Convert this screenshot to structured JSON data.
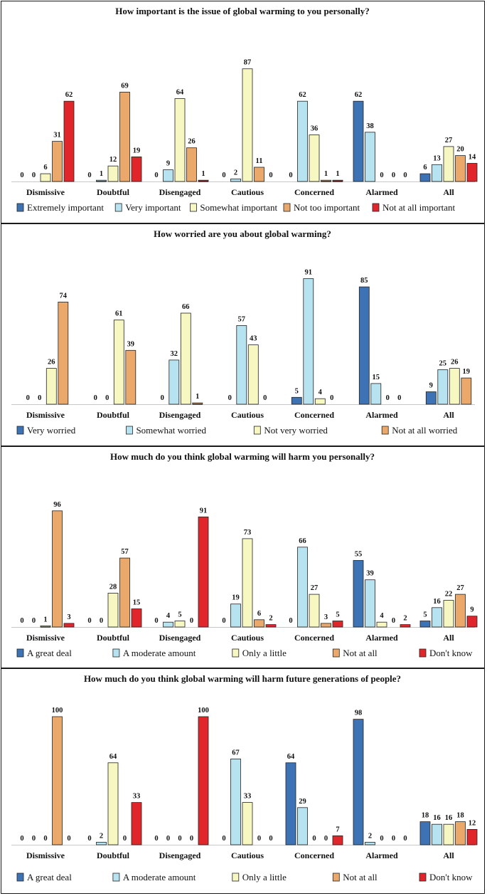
{
  "chart_data": [
    {
      "type": "bar",
      "title": "How important is the issue of global warming to you personally?",
      "categories": [
        "Dismissive",
        "Doubtful",
        "Disengaged",
        "Cautious",
        "Concerned",
        "Alarmed",
        "All"
      ],
      "ylim": [
        0,
        100
      ],
      "series": [
        {
          "name": "Extremely important",
          "color": "#3d72b4",
          "values": [
            0,
            0,
            0,
            0,
            0,
            62,
            6
          ]
        },
        {
          "name": "Very important",
          "color": "#b7e3f0",
          "values": [
            0,
            1,
            9,
            2,
            62,
            38,
            13
          ]
        },
        {
          "name": "Somewhat important",
          "color": "#f7f7c2",
          "values": [
            6,
            12,
            64,
            87,
            36,
            0,
            27
          ]
        },
        {
          "name": "Not too important",
          "color": "#eaa86a",
          "values": [
            31,
            69,
            26,
            11,
            1,
            0,
            20
          ]
        },
        {
          "name": "Not at all important",
          "color": "#e0262a",
          "values": [
            62,
            19,
            1,
            0,
            1,
            0,
            14
          ]
        }
      ]
    },
    {
      "type": "bar",
      "title": "How worried are you about global warming?",
      "categories": [
        "Dismissive",
        "Doubtful",
        "Disengaged",
        "Cautious",
        "Concerned",
        "Alarmed",
        "All"
      ],
      "ylim": [
        0,
        100
      ],
      "series": [
        {
          "name": "Very worried",
          "color": "#3d72b4",
          "values": [
            0,
            0,
            0,
            0,
            5,
            85,
            9
          ]
        },
        {
          "name": "Somewhat worried",
          "color": "#b7e3f0",
          "values": [
            0,
            0,
            32,
            57,
            91,
            15,
            25
          ]
        },
        {
          "name": "Not very worried",
          "color": "#f7f7c2",
          "values": [
            26,
            61,
            66,
            43,
            4,
            0,
            26
          ]
        },
        {
          "name": "Not at all worried",
          "color": "#eaa86a",
          "values": [
            74,
            39,
            1,
            0,
            0,
            0,
            19
          ]
        }
      ]
    },
    {
      "type": "bar",
      "title": "How much do you think global warming will harm you personally?",
      "categories": [
        "Dismissive",
        "Doubtful",
        "Disengaged",
        "Cautious",
        "Concerned",
        "Alarmed",
        "All"
      ],
      "ylim": [
        0,
        100
      ],
      "series": [
        {
          "name": "A great deal",
          "color": "#3d72b4",
          "values": [
            0,
            0,
            0,
            0,
            0,
            55,
            5
          ]
        },
        {
          "name": "A moderate amount",
          "color": "#b7e3f0",
          "values": [
            0,
            0,
            4,
            19,
            66,
            39,
            16
          ]
        },
        {
          "name": "Only a little",
          "color": "#f7f7c2",
          "values": [
            1,
            28,
            5,
            73,
            27,
            4,
            22
          ]
        },
        {
          "name": "Not at all",
          "color": "#eaa86a",
          "values": [
            96,
            57,
            0,
            6,
            3,
            0,
            27
          ]
        },
        {
          "name": "Don't know",
          "color": "#e0262a",
          "values": [
            3,
            15,
            91,
            2,
            5,
            2,
            9
          ]
        }
      ]
    },
    {
      "type": "bar",
      "title": "How much do you think global warming will harm future generations of people?",
      "categories": [
        "Dismissive",
        "Doubtful",
        "Disengaged",
        "Cautious",
        "Concerned",
        "Alarmed",
        "All"
      ],
      "ylim": [
        0,
        100
      ],
      "series": [
        {
          "name": "A great deal",
          "color": "#3d72b4",
          "values": [
            0,
            0,
            0,
            0,
            64,
            98,
            18
          ]
        },
        {
          "name": "A moderate amount",
          "color": "#b7e3f0",
          "values": [
            0,
            2,
            0,
            67,
            29,
            2,
            16
          ]
        },
        {
          "name": "Only a little",
          "color": "#f7f7c2",
          "values": [
            0,
            64,
            0,
            33,
            0,
            0,
            16
          ]
        },
        {
          "name": "Not at all",
          "color": "#eaa86a",
          "values": [
            100,
            0,
            0,
            0,
            0,
            0,
            18
          ]
        },
        {
          "name": "Don't know",
          "color": "#e0262a",
          "values": [
            0,
            33,
            100,
            0,
            7,
            0,
            12
          ]
        }
      ]
    }
  ]
}
